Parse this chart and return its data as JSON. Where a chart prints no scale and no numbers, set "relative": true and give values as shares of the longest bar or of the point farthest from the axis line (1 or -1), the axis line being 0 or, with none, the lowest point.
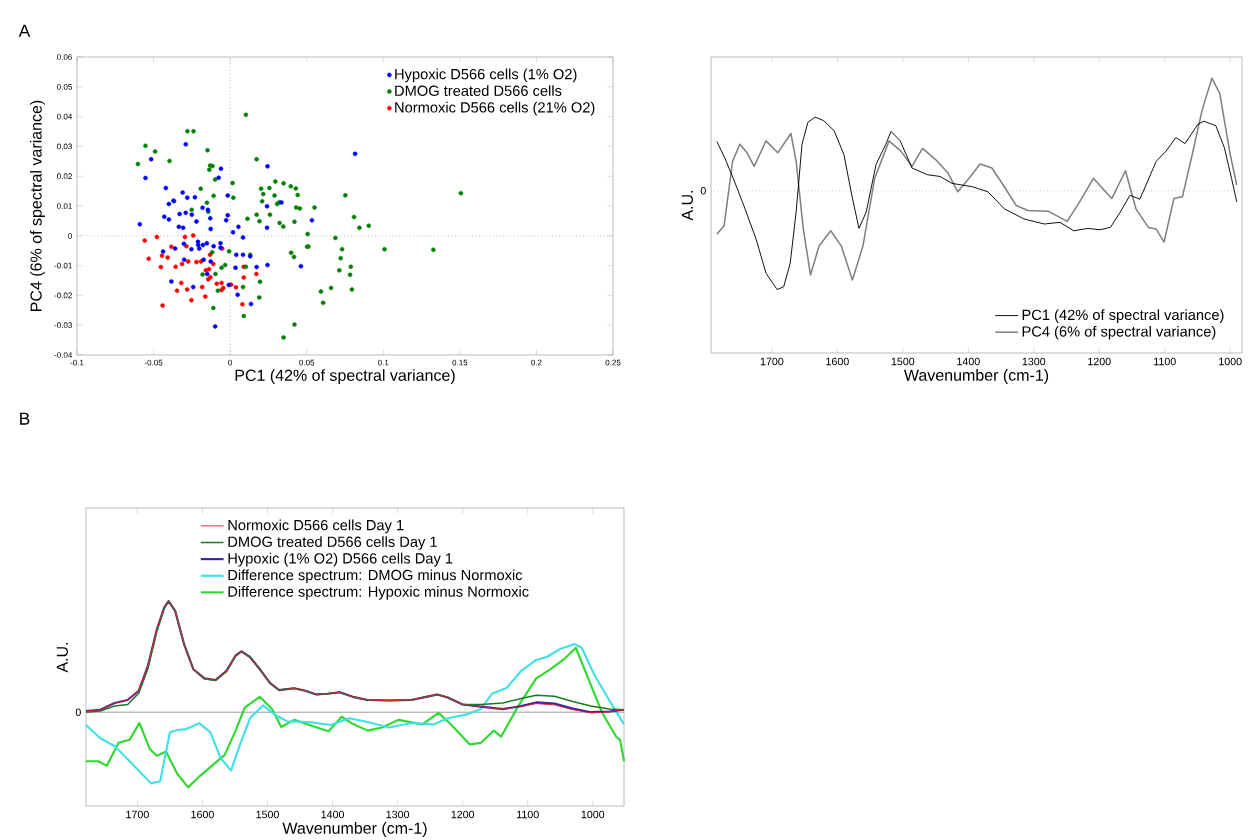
{
  "chart_data": [
    {
      "type": "scatter",
      "xlabel": "PC1 (42% of spectral variance)",
      "ylabel": "PC4 (6% of spectral variance)",
      "xlim": [
        -0.1,
        0.25
      ],
      "ylim": [
        -0.04,
        0.06
      ],
      "xticks": [
        -0.1,
        -0.05,
        0,
        0.05,
        0.1,
        0.15,
        0.2,
        0.25
      ],
      "yticks": [
        -0.04,
        -0.03,
        -0.02,
        -0.01,
        0,
        0.01,
        0.02,
        0.03,
        0.04,
        0.05,
        0.06
      ],
      "marker": "circle",
      "legend": "top right",
      "annotations": [
        "A"
      ],
      "ref_lines": [
        {
          "axis": "x",
          "value": 0,
          "line_style": "dotted",
          "color": "#999999"
        },
        {
          "axis": "y",
          "value": 0,
          "line_style": "dotted",
          "color": "#999999"
        }
      ],
      "series": [
        {
          "name": "Hypoxic D566 cells (1% O2)",
          "color": "#0000ff",
          "x": [
            -0.059,
            -0.0516,
            -0.0553,
            -0.029,
            0.0244,
            0.0816,
            -0.006,
            -0.0075,
            -0.042,
            -0.04,
            -0.037,
            -0.031,
            -0.028,
            -0.023,
            -0.043,
            -0.04,
            -0.033,
            -0.029,
            -0.025,
            -0.022,
            -0.018,
            -0.0145,
            -0.013,
            -0.0127,
            -0.0016,
            -0.0016,
            -0.0026,
            0.0019,
            0.0054,
            0.0241,
            0.0335,
            0.0241,
            0.0534,
            -0.0335,
            -0.0307,
            0.0084,
            0.0244,
            0.0462,
            0.0173,
            0.0035,
            0.004,
            0.0084,
            0.0131,
            0.0049,
            0.0136,
            -0.0009,
            -0.0098,
            -0.0384,
            -0.0241,
            -0.015,
            -0.0438,
            -0.0359,
            -0.0302,
            -0.0253,
            -0.021,
            -0.0209,
            -0.0202,
            -0.0178,
            -0.0152,
            -0.0108,
            -0.0063,
            -0.0063,
            -0.03,
            -0.0173,
            -0.0127
          ],
          "values": [
            0.0039,
            0.0257,
            0.0194,
            0.0307,
            0.0233,
            0.0275,
            0.0225,
            0.0195,
            0.016,
            0.0107,
            0.0118,
            0.0145,
            0.0128,
            0.0129,
            0.0064,
            0.0055,
            0.0073,
            0.0077,
            0.0071,
            0.0048,
            0.0094,
            0.0087,
            0.0059,
            0.0023,
            0.0135,
            0.0069,
            0.0052,
            0.0012,
            0.003,
            0.0099,
            0.0112,
            0.0027,
            0.0052,
            0.003,
            0.0027,
            -0.0006,
            -0.0098,
            -0.0102,
            -0.0105,
            -0.0107,
            -0.0064,
            -0.0064,
            -0.0069,
            -0.0198,
            -0.0229,
            -0.0165,
            -0.0304,
            -0.0153,
            -0.0172,
            -0.0128,
            -0.0053,
            -0.0043,
            -0.0027,
            -0.0045,
            -0.002,
            -0.0031,
            -0.0043,
            -0.0031,
            -0.0025,
            -0.0035,
            -0.0025,
            -0.004,
            -0.008,
            -0.008,
            -0.0086
          ]
        },
        {
          "name": "DMOG treated D566 cells",
          "color": "#008000",
          "x": [
            -0.0602,
            -0.0553,
            -0.049,
            -0.0396,
            -0.0279,
            -0.0239,
            -0.0148,
            0.0103,
            0.0173,
            -0.0131,
            -0.0115,
            -0.0136,
            -0.0098,
            -0.0108,
            -0.0192,
            -0.0152,
            -0.0251,
            -0.0366,
            -0.0143,
            0.0016,
            0.0021,
            0.0202,
            0.0216,
            0.0256,
            0.0295,
            0.0349,
            0.029,
            0.0307,
            0.0321,
            0.0396,
            0.0429,
            0.0441,
            0.0209,
            0.026,
            0.0173,
            0.0192,
            0.0113,
            0.0323,
            0.0347,
            0.042,
            0.0431,
            0.0455,
            0.0551,
            0.0752,
            0.0809,
            0.0844,
            0.0905,
            0.1507,
            0.0506,
            0.0511,
            0.0502,
            0.0687,
            0.0731,
            0.0722,
            0.0713,
            0.0788,
            0.0783,
            0.0795,
            0.1008,
            0.1327,
            0.0398,
            0.0417,
            0.0659,
            0.0593,
            0.0607,
            0.042,
            0.0349,
            0.0089,
            0.0084,
            0.019,
            0.0195,
            0.0131,
            0.0103,
            -0.0007,
            -0.0033,
            -0.0056,
            -0.0096,
            -0.008,
            -0.011,
            -0.018,
            -0.0117
          ],
          "values": [
            0.0241,
            0.0302,
            0.0283,
            0.0251,
            0.0351,
            0.0351,
            0.0287,
            0.0406,
            0.0257,
            0.0236,
            0.0234,
            0.0222,
            0.0189,
            0.0134,
            0.0158,
            0.0111,
            0.0087,
            0.0116,
            0.0081,
            0.0177,
            0.0128,
            0.0158,
            0.014,
            0.016,
            0.0182,
            0.0176,
            0.0135,
            0.0107,
            0.0113,
            0.0166,
            0.0159,
            0.0137,
            0.0116,
            0.0071,
            0.0071,
            0.0049,
            0.0057,
            0.0043,
            0.0031,
            0.0047,
            0.0095,
            0.0092,
            0.0095,
            0.0136,
            0.0063,
            0.0027,
            0.0034,
            0.0143,
            0.0006,
            -0.0036,
            -0.0037,
            -0.0007,
            -0.0045,
            -0.0075,
            -0.0116,
            -0.0104,
            -0.0131,
            -0.018,
            -0.0045,
            -0.0047,
            -0.0057,
            -0.0071,
            -0.0175,
            -0.0187,
            -0.0225,
            -0.0298,
            -0.0341,
            -0.0269,
            -0.0172,
            -0.0207,
            -0.0154,
            -0.0064,
            -0.0104,
            -0.0052,
            -0.0098,
            -0.0107,
            -0.0128,
            -0.0184,
            -0.0242,
            -0.013,
            -0.0055
          ]
        },
        {
          "name": "Normoxic D566 cells (21% O2)",
          "color": "#ff0000",
          "x": [
            -0.0558,
            -0.0478,
            -0.0532,
            -0.0452,
            -0.0445,
            -0.0408,
            -0.0384,
            -0.0356,
            -0.0314,
            -0.0274,
            -0.022,
            -0.019,
            -0.0295,
            -0.0241,
            -0.0286,
            -0.0319,
            -0.0347,
            -0.0281,
            -0.0253,
            -0.0183,
            -0.0162,
            -0.0441,
            -0.0159,
            -0.0138,
            -0.0129,
            -0.0143,
            -0.011,
            -0.0131,
            -0.0052,
            -0.0087,
            -0.0056,
            -0.0056,
            -0.0045,
            0.0006,
            0.0038,
            0.0089,
            0.0089,
            0.008,
            0.0171
          ],
          "values": [
            -0.0016,
            -0.0004,
            -0.0077,
            -0.0105,
            -0.0067,
            -0.0073,
            -0.0037,
            -0.0104,
            -0.0095,
            -0.0086,
            -0.0088,
            -0.0086,
            -0.0004,
            0.0001,
            -0.0035,
            -0.0158,
            -0.0184,
            -0.018,
            -0.0216,
            -0.0172,
            -0.0204,
            -0.0234,
            -0.0116,
            -0.0112,
            -0.0139,
            -0.0146,
            -0.0095,
            -0.0064,
            -0.0043,
            -0.0161,
            -0.0158,
            -0.0182,
            -0.0175,
            -0.0164,
            -0.0173,
            -0.0104,
            -0.014,
            -0.023,
            -0.0128
          ]
        }
      ]
    },
    {
      "type": "line",
      "relative": true,
      "xlabel": "Wavenumber (cm-1)",
      "ylabel": "A.U.",
      "xlim": [
        1793,
        982
      ],
      "xticks": [
        1700,
        1600,
        1500,
        1400,
        1300,
        1200,
        1100,
        1000
      ],
      "legend": "bottom right",
      "ref_lines": [
        {
          "axis": "y",
          "value": 0,
          "label": "0",
          "line_style": "dotted",
          "color": "#aaaaaa"
        }
      ],
      "series": [
        {
          "name": "PC1 (42% of spectral variance)",
          "color": "#000000",
          "x": [
            1784,
            1772,
            1758,
            1743,
            1724,
            1709,
            1692,
            1682,
            1672,
            1663,
            1654,
            1645,
            1634,
            1621,
            1605,
            1590,
            1578,
            1567,
            1556,
            1541,
            1526,
            1518,
            1504,
            1486,
            1462,
            1443,
            1425,
            1394,
            1370,
            1345,
            1315,
            1284,
            1260,
            1239,
            1217,
            1199,
            1183,
            1168,
            1153,
            1138,
            1113,
            1098,
            1083,
            1069,
            1049,
            1040,
            1022,
            1009,
            998,
            990
          ],
          "values": [
            0.437,
            0.292,
            0.096,
            -0.13,
            -0.431,
            -0.732,
            -0.877,
            -0.852,
            -0.642,
            -0.19,
            0.413,
            0.608,
            0.654,
            0.623,
            0.533,
            0.322,
            -0.039,
            -0.334,
            -0.19,
            0.232,
            0.413,
            0.527,
            0.443,
            0.202,
            0.142,
            0.127,
            0.066,
            0.036,
            -0.009,
            -0.16,
            -0.25,
            -0.295,
            -0.28,
            -0.355,
            -0.334,
            -0.346,
            -0.325,
            -0.19,
            -0.039,
            -0.075,
            0.262,
            0.352,
            0.473,
            0.419,
            0.593,
            0.617,
            0.578,
            0.383,
            0.111,
            -0.099
          ]
        },
        {
          "name": "PC4 (6% of spectral variance)",
          "color": "#808080",
          "x": [
            1784,
            1773,
            1760,
            1749,
            1738,
            1727,
            1709,
            1691,
            1671,
            1663,
            1652,
            1641,
            1628,
            1610,
            1594,
            1577,
            1561,
            1543,
            1521,
            1503,
            1486,
            1470,
            1450,
            1431,
            1416,
            1401,
            1382,
            1364,
            1345,
            1327,
            1309,
            1278,
            1249,
            1230,
            1209,
            1181,
            1160,
            1144,
            1125,
            1113,
            1101,
            1086,
            1073,
            1058,
            1043,
            1028,
            1016,
            1000,
            990
          ],
          "values": [
            -0.386,
            -0.31,
            0.262,
            0.413,
            0.337,
            0.217,
            0.443,
            0.337,
            0.509,
            0.262,
            -0.34,
            -0.747,
            -0.491,
            -0.355,
            -0.491,
            -0.792,
            -0.491,
            0.111,
            0.443,
            0.352,
            0.217,
            0.377,
            0.277,
            0.157,
            -0.009,
            0.096,
            0.238,
            0.202,
            0.036,
            -0.13,
            -0.175,
            -0.181,
            -0.271,
            -0.099,
            0.111,
            -0.069,
            0.178,
            -0.16,
            -0.325,
            -0.34,
            -0.455,
            -0.069,
            -0.054,
            0.322,
            0.714,
            1.0,
            0.864,
            0.322,
            0.051
          ]
        }
      ]
    },
    {
      "type": "line",
      "relative": true,
      "xlabel": "Wavenumber (cm-1)",
      "ylabel": "A.U.",
      "xlim": [
        1779,
        952
      ],
      "xticks": [
        1700,
        1600,
        1500,
        1400,
        1300,
        1200,
        1100,
        1000
      ],
      "legend": "top",
      "annotations": [
        "B"
      ],
      "ref_lines": [
        {
          "axis": "y",
          "value": 0,
          "label": "0"
        }
      ],
      "series": [
        {
          "name": "Normoxic D566 cells Day 1",
          "color": "#e0202a",
          "x": [
            1779,
            1757,
            1735,
            1715,
            1698,
            1684,
            1670,
            1659,
            1652,
            1642,
            1628,
            1614,
            1597,
            1580,
            1563,
            1549,
            1540,
            1527,
            1510,
            1496,
            1482,
            1459,
            1442,
            1425,
            1408,
            1389,
            1369,
            1346,
            1313,
            1279,
            1256,
            1239,
            1223,
            1200,
            1172,
            1138,
            1110,
            1087,
            1059,
            1031,
            1003,
            975,
            952
          ],
          "values": [
            0.006,
            0.022,
            0.083,
            0.11,
            0.193,
            0.414,
            0.746,
            0.939,
            1.0,
            0.912,
            0.608,
            0.387,
            0.304,
            0.29,
            0.373,
            0.511,
            0.547,
            0.497,
            0.373,
            0.262,
            0.199,
            0.215,
            0.193,
            0.16,
            0.166,
            0.18,
            0.138,
            0.11,
            0.105,
            0.11,
            0.138,
            0.16,
            0.133,
            0.069,
            0.05,
            0.028,
            0.05,
            0.077,
            0.066,
            0.022,
            -0.006,
            0.003,
            0.022
          ]
        },
        {
          "name": "DMOG treated D566 cells Day 1",
          "color": "#1a7a2a",
          "x": [
            1779,
            1757,
            1735,
            1715,
            1698,
            1684,
            1670,
            1659,
            1652,
            1642,
            1628,
            1614,
            1597,
            1580,
            1563,
            1549,
            1540,
            1527,
            1510,
            1496,
            1482,
            1459,
            1442,
            1425,
            1408,
            1389,
            1369,
            1346,
            1313,
            1279,
            1256,
            1239,
            1223,
            1200,
            1172,
            1138,
            1110,
            1087,
            1059,
            1031,
            1003,
            975,
            952
          ],
          "values": [
            0.0,
            0.011,
            0.055,
            0.069,
            0.17,
            0.39,
            0.73,
            0.93,
            1.0,
            0.912,
            0.608,
            0.387,
            0.3,
            0.285,
            0.365,
            0.505,
            0.545,
            0.497,
            0.373,
            0.262,
            0.199,
            0.215,
            0.193,
            0.16,
            0.166,
            0.18,
            0.138,
            0.11,
            0.105,
            0.11,
            0.138,
            0.16,
            0.133,
            0.069,
            0.069,
            0.083,
            0.124,
            0.152,
            0.144,
            0.097,
            0.055,
            0.028,
            0.022
          ]
        },
        {
          "name": "Hypoxic (1% O2) D566 cells Day 1",
          "color": "#3a22a0",
          "x": [
            1779,
            1757,
            1735,
            1715,
            1698,
            1684,
            1670,
            1659,
            1652,
            1642,
            1628,
            1614,
            1597,
            1580,
            1563,
            1549,
            1540,
            1527,
            1510,
            1496,
            1482,
            1459,
            1442,
            1425,
            1408,
            1389,
            1369,
            1346,
            1313,
            1279,
            1256,
            1239,
            1223,
            1200,
            1172,
            1138,
            1110,
            1087,
            1059,
            1031,
            1003,
            975,
            952
          ],
          "values": [
            0.011,
            0.022,
            0.083,
            0.11,
            0.193,
            0.414,
            0.746,
            0.939,
            1.0,
            0.912,
            0.608,
            0.387,
            0.304,
            0.29,
            0.373,
            0.511,
            0.547,
            0.497,
            0.373,
            0.262,
            0.199,
            0.215,
            0.193,
            0.16,
            0.166,
            0.18,
            0.138,
            0.11,
            0.105,
            0.11,
            0.138,
            0.16,
            0.133,
            0.069,
            0.05,
            0.028,
            0.055,
            0.088,
            0.077,
            0.033,
            0.0,
            0.006,
            0.022
          ]
        },
        {
          "name": "Difference spectrum: DMOG minus Normoxic",
          "color": "#40e0e8",
          "x": [
            1779,
            1757,
            1735,
            1707,
            1679,
            1665,
            1650,
            1639,
            1625,
            1605,
            1588,
            1572,
            1556,
            1543,
            1527,
            1507,
            1487,
            1470,
            1436,
            1403,
            1374,
            1346,
            1313,
            1279,
            1245,
            1223,
            1195,
            1172,
            1155,
            1132,
            1110,
            1087,
            1071,
            1051,
            1028,
            1017,
            997,
            975,
            952
          ],
          "values": [
            -0.116,
            -0.235,
            -0.304,
            -0.47,
            -0.641,
            -0.622,
            -0.18,
            -0.16,
            -0.152,
            -0.099,
            -0.18,
            -0.414,
            -0.525,
            -0.304,
            -0.055,
            0.061,
            -0.028,
            -0.083,
            -0.088,
            -0.116,
            -0.055,
            -0.088,
            -0.138,
            -0.097,
            -0.11,
            -0.055,
            -0.022,
            0.028,
            0.166,
            0.221,
            0.373,
            0.47,
            0.497,
            0.566,
            0.613,
            0.58,
            0.331,
            0.11,
            -0.11
          ]
        },
        {
          "name": "Difference spectrum: Hypoxic minus Normoxic",
          "color": "#30d830",
          "x": [
            1779,
            1760,
            1747,
            1729,
            1712,
            1697,
            1681,
            1670,
            1656,
            1639,
            1622,
            1605,
            1583,
            1566,
            1549,
            1535,
            1512,
            1493,
            1479,
            1459,
            1431,
            1406,
            1386,
            1369,
            1346,
            1324,
            1299,
            1262,
            1237,
            1218,
            1189,
            1172,
            1152,
            1141,
            1116,
            1087,
            1065,
            1043,
            1026,
            1009,
            986,
            964,
            958,
            952
          ],
          "values": [
            -0.442,
            -0.442,
            -0.483,
            -0.276,
            -0.249,
            -0.097,
            -0.331,
            -0.392,
            -0.354,
            -0.552,
            -0.677,
            -0.58,
            -0.47,
            -0.387,
            -0.166,
            0.041,
            0.138,
            0.028,
            -0.133,
            -0.069,
            -0.124,
            -0.171,
            -0.041,
            -0.105,
            -0.166,
            -0.138,
            -0.069,
            -0.11,
            -0.006,
            -0.11,
            -0.29,
            -0.276,
            -0.166,
            -0.221,
            0.041,
            0.304,
            0.387,
            0.483,
            0.58,
            0.331,
            0.0,
            -0.221,
            -0.249,
            -0.442
          ]
        }
      ]
    }
  ]
}
